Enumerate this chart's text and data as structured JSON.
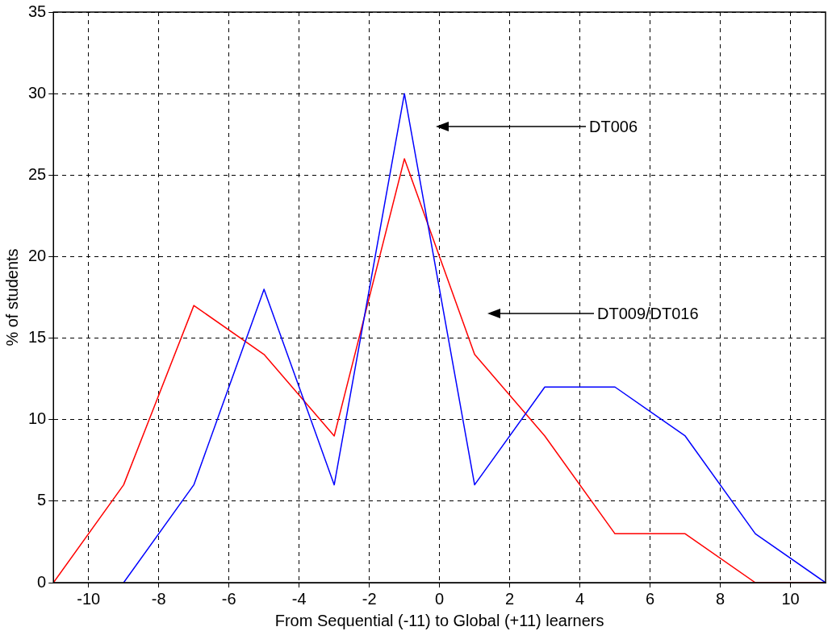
{
  "chart_data": {
    "type": "line",
    "xlabel": "From Sequential (-11) to Global (+11) learners",
    "ylabel": "% of students",
    "x": [
      -11,
      -9,
      -7,
      -5,
      -3,
      -1,
      1,
      3,
      5,
      7,
      9,
      11
    ],
    "series": [
      {
        "color": "#0000ff",
        "values": [
          null,
          0,
          6,
          18,
          6,
          30,
          6,
          12,
          12,
          9,
          3,
          0
        ]
      },
      {
        "color": "#ff0000",
        "values": [
          0,
          6,
          17,
          14,
          9,
          26,
          14,
          9,
          3,
          3,
          0,
          0
        ]
      }
    ],
    "xlim": [
      -11,
      11
    ],
    "xticks": [
      -10,
      -8,
      -6,
      -4,
      -2,
      0,
      2,
      4,
      6,
      8,
      10
    ],
    "ylim": [
      0,
      35
    ],
    "yticks": [
      0,
      5,
      10,
      15,
      20,
      25,
      30,
      35
    ],
    "grid": true,
    "legend": false,
    "marker": "none",
    "line_style": "solid",
    "annotations": [
      "DT006",
      "DT009/DT016"
    ]
  }
}
